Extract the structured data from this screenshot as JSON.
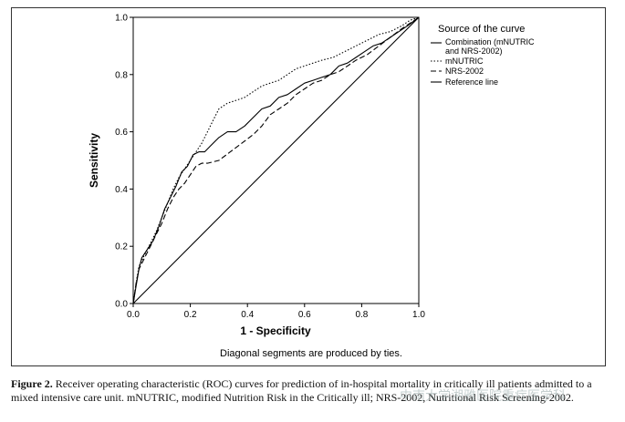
{
  "chart_data": {
    "type": "line",
    "xlabel": "1 - Specificity",
    "ylabel": "Sensitivity",
    "xlim": [
      0,
      1
    ],
    "ylim": [
      0,
      1
    ],
    "xticks": [
      "0.0",
      "0.2",
      "0.4",
      "0.6",
      "0.8",
      "1.0"
    ],
    "yticks": [
      "0.0",
      "0.2",
      "0.4",
      "0.6",
      "0.8",
      "1.0"
    ],
    "grid": false,
    "legend_title": "Source of the curve",
    "legend_position": "right",
    "footnote": "Diagonal segments are produced by ties.",
    "series": [
      {
        "name": "Combination (mNUTRIC and NRS-2002)",
        "style": "solid",
        "x": [
          0.0,
          0.01,
          0.02,
          0.03,
          0.05,
          0.07,
          0.09,
          0.11,
          0.13,
          0.15,
          0.17,
          0.19,
          0.21,
          0.23,
          0.25,
          0.27,
          0.3,
          0.33,
          0.36,
          0.39,
          0.42,
          0.45,
          0.48,
          0.51,
          0.54,
          0.57,
          0.6,
          0.63,
          0.66,
          0.69,
          0.72,
          0.75,
          0.78,
          0.81,
          0.84,
          0.87,
          0.9,
          0.93,
          0.96,
          1.0
        ],
        "y": [
          0.0,
          0.06,
          0.12,
          0.16,
          0.19,
          0.22,
          0.27,
          0.33,
          0.37,
          0.41,
          0.46,
          0.48,
          0.52,
          0.53,
          0.53,
          0.55,
          0.58,
          0.6,
          0.6,
          0.62,
          0.65,
          0.68,
          0.69,
          0.72,
          0.73,
          0.75,
          0.77,
          0.78,
          0.79,
          0.8,
          0.83,
          0.84,
          0.86,
          0.88,
          0.9,
          0.91,
          0.93,
          0.95,
          0.97,
          1.0
        ]
      },
      {
        "name": "mNUTRIC",
        "style": "dotted",
        "x": [
          0.0,
          0.01,
          0.02,
          0.04,
          0.06,
          0.08,
          0.1,
          0.12,
          0.14,
          0.16,
          0.18,
          0.2,
          0.22,
          0.24,
          0.26,
          0.28,
          0.3,
          0.33,
          0.36,
          0.39,
          0.42,
          0.45,
          0.48,
          0.51,
          0.54,
          0.57,
          0.6,
          0.63,
          0.66,
          0.7,
          0.74,
          0.78,
          0.82,
          0.86,
          0.9,
          0.94,
          0.97,
          1.0
        ],
        "y": [
          0.0,
          0.07,
          0.13,
          0.17,
          0.21,
          0.25,
          0.3,
          0.35,
          0.4,
          0.44,
          0.47,
          0.5,
          0.53,
          0.56,
          0.6,
          0.64,
          0.68,
          0.7,
          0.71,
          0.72,
          0.74,
          0.76,
          0.77,
          0.78,
          0.8,
          0.82,
          0.83,
          0.84,
          0.85,
          0.86,
          0.88,
          0.9,
          0.92,
          0.94,
          0.95,
          0.97,
          0.99,
          1.0
        ]
      },
      {
        "name": "NRS-2002",
        "style": "dashed",
        "x": [
          0.0,
          0.01,
          0.02,
          0.04,
          0.06,
          0.08,
          0.1,
          0.12,
          0.14,
          0.16,
          0.18,
          0.2,
          0.22,
          0.24,
          0.26,
          0.3,
          0.34,
          0.38,
          0.42,
          0.45,
          0.48,
          0.51,
          0.54,
          0.57,
          0.6,
          0.63,
          0.66,
          0.69,
          0.72,
          0.75,
          0.78,
          0.82,
          0.86,
          0.9,
          0.94,
          0.97,
          1.0
        ],
        "y": [
          0.0,
          0.07,
          0.12,
          0.16,
          0.2,
          0.24,
          0.28,
          0.33,
          0.37,
          0.4,
          0.42,
          0.45,
          0.48,
          0.49,
          0.49,
          0.5,
          0.53,
          0.56,
          0.59,
          0.62,
          0.66,
          0.68,
          0.7,
          0.73,
          0.75,
          0.77,
          0.78,
          0.8,
          0.81,
          0.83,
          0.85,
          0.87,
          0.9,
          0.93,
          0.96,
          0.98,
          1.0
        ]
      },
      {
        "name": "Reference line",
        "style": "reference",
        "x": [
          0.0,
          1.0
        ],
        "y": [
          0.0,
          1.0
        ]
      }
    ]
  },
  "caption": {
    "label": "Figure 2.",
    "text": "Receiver operating characteristic (ROC) curves for prediction of in-hospital mortality in critically ill patients admitted to a mixed intensive care unit. mNUTRIC, modified Nutrition Risk in the Critically ill; NRS-2002, Nutritional Risk Screening-2002."
  },
  "watermark": "中南大学湘雅医院重症医学科"
}
